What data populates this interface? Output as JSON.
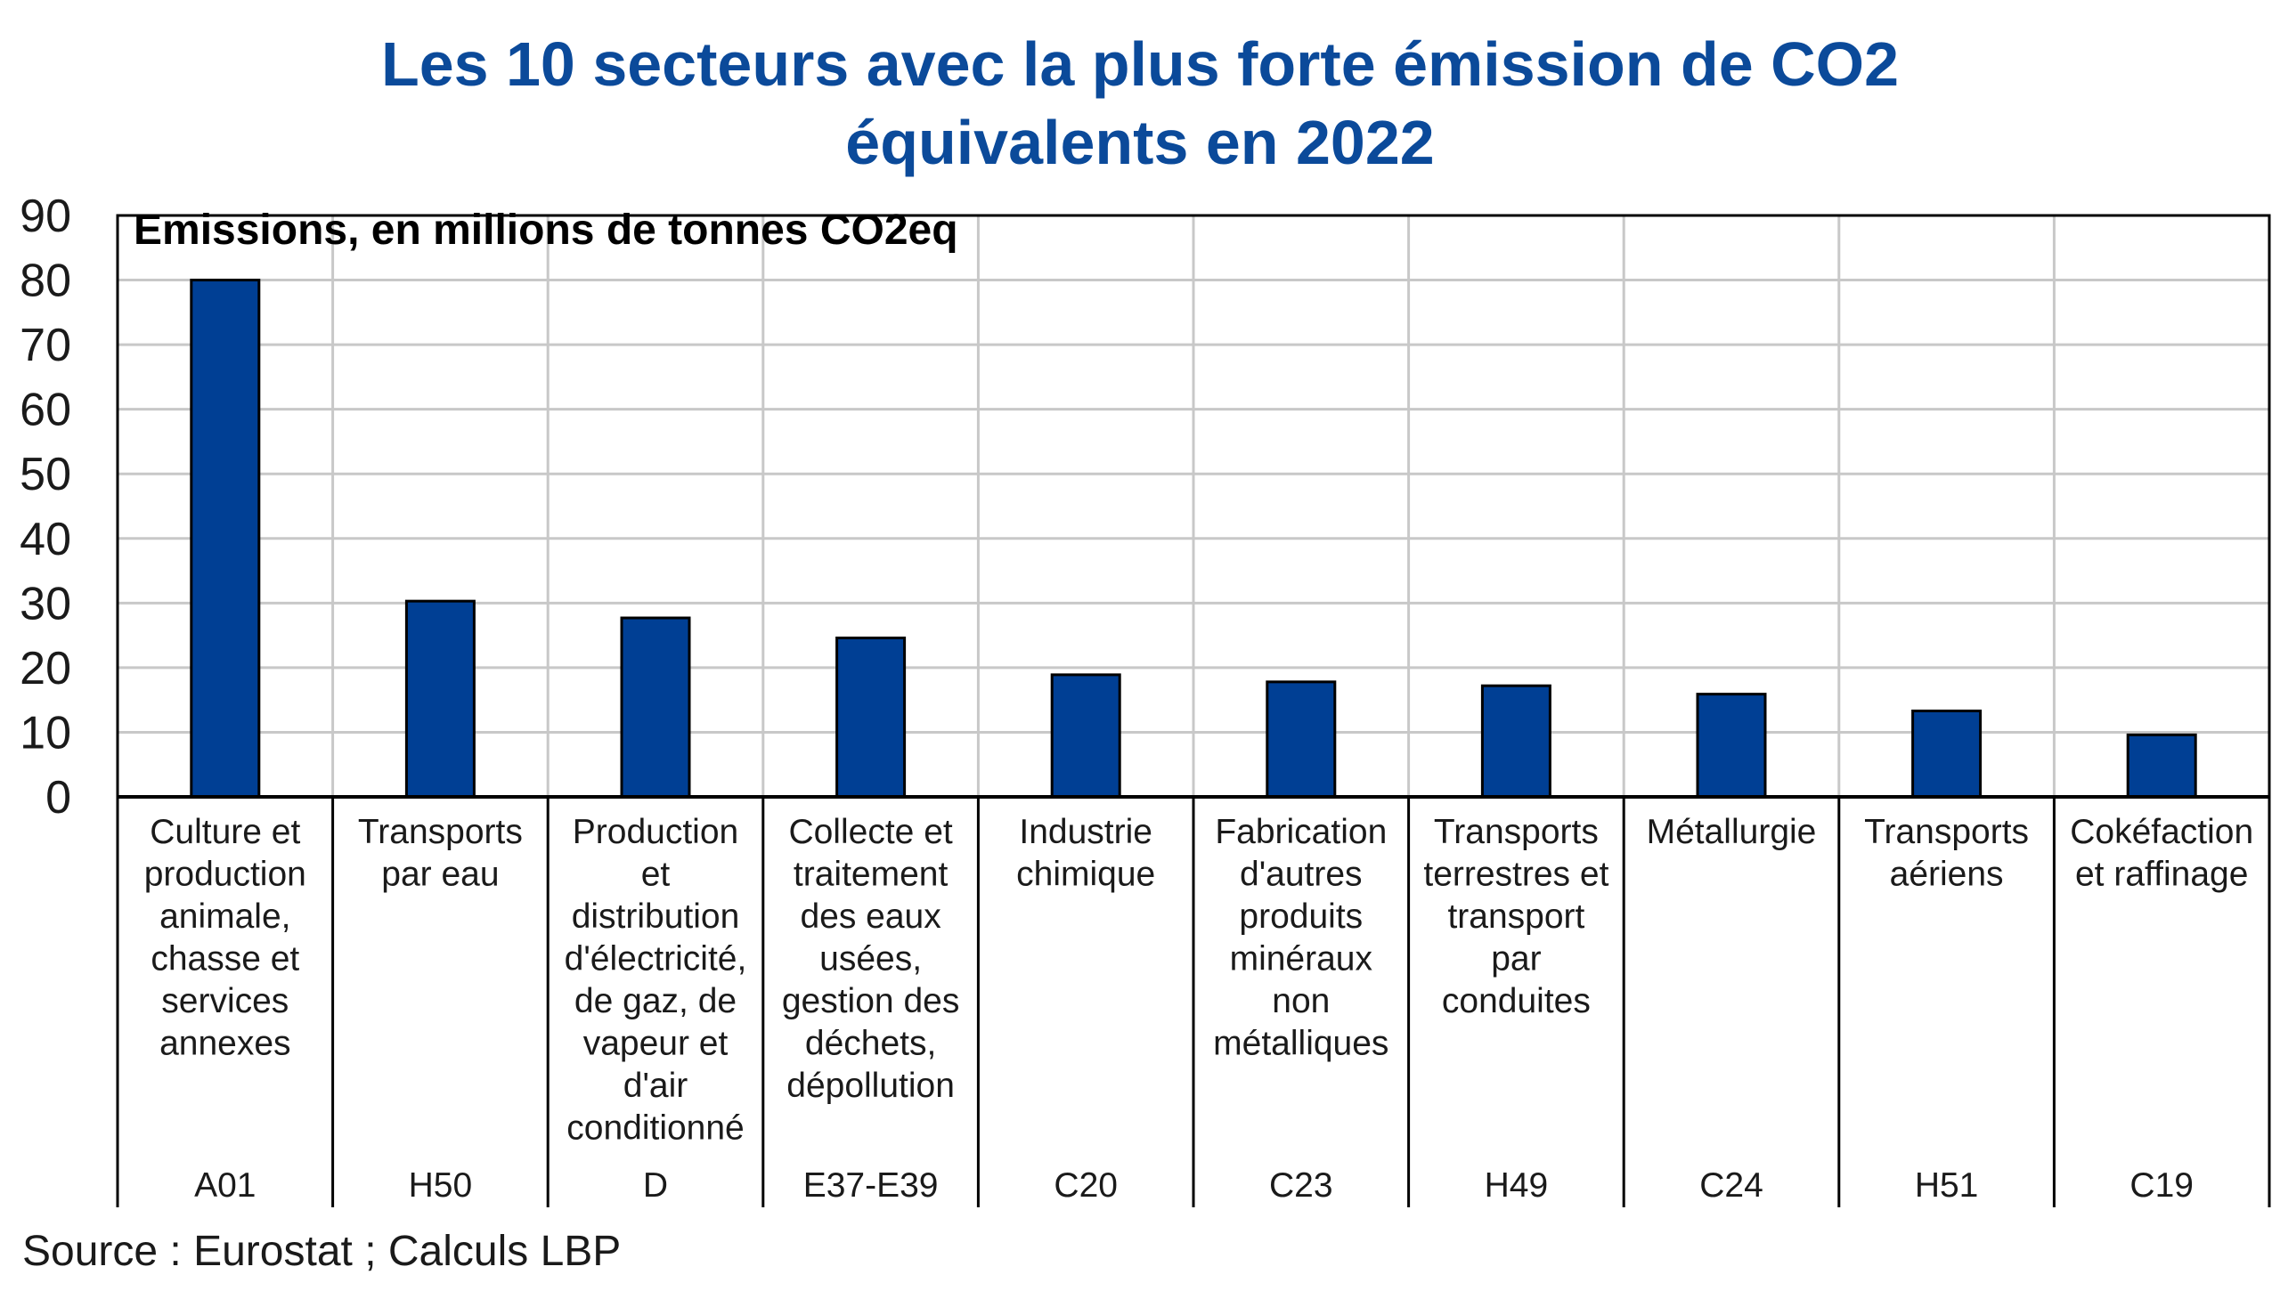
{
  "title_lines": [
    "Les 10 secteurs avec la plus forte émission de CO2",
    "équivalents en 2022"
  ],
  "source": "Source : Eurostat ; Calculs LBP",
  "colors": {
    "title": "#0b4a9a",
    "bar": "#003f94",
    "bar_outline": "#000000",
    "grid": "#c8c8c8",
    "axis": "#000000",
    "text": "#1a1a1a"
  },
  "chart_data": {
    "type": "bar",
    "title": "Les 10 secteurs avec la plus forte émission de CO2 équivalents en 2022",
    "unit_label": "Emissions, en millions de tonnes CO2eq",
    "ylim": [
      0,
      90
    ],
    "yticks": [
      0,
      10,
      20,
      30,
      40,
      50,
      60,
      70,
      80,
      90
    ],
    "grid": true,
    "legend": "none",
    "categories": [
      {
        "label_lines": [
          "Culture et",
          "production",
          "animale,",
          "chasse et",
          "services",
          "annexes"
        ],
        "code": "A01"
      },
      {
        "label_lines": [
          "Transports",
          "par eau"
        ],
        "code": "H50"
      },
      {
        "label_lines": [
          "Production",
          "et",
          "distribution",
          "d'électricité,",
          "de gaz, de",
          "vapeur et",
          "d'air",
          "conditionné"
        ],
        "code": "D"
      },
      {
        "label_lines": [
          "Collecte et",
          "traitement",
          "des eaux",
          "usées,",
          "gestion des",
          "déchets,",
          "dépollution"
        ],
        "code": "E37-E39"
      },
      {
        "label_lines": [
          "Industrie",
          "chimique"
        ],
        "code": "C20"
      },
      {
        "label_lines": [
          "Fabrication",
          "d'autres",
          "produits",
          "minéraux",
          "non",
          "métalliques"
        ],
        "code": "C23"
      },
      {
        "label_lines": [
          "Transports",
          "terrestres et",
          "transport",
          "par",
          "conduites"
        ],
        "code": "H49"
      },
      {
        "label_lines": [
          "Métallurgie"
        ],
        "code": "C24"
      },
      {
        "label_lines": [
          "Transports",
          "aériens"
        ],
        "code": "H51"
      },
      {
        "label_lines": [
          "Cokéfaction",
          "et raffinage"
        ],
        "code": "C19"
      }
    ],
    "values": [
      80.0,
      30.3,
      27.7,
      24.6,
      18.9,
      17.8,
      17.2,
      15.9,
      13.3,
      9.6
    ]
  }
}
